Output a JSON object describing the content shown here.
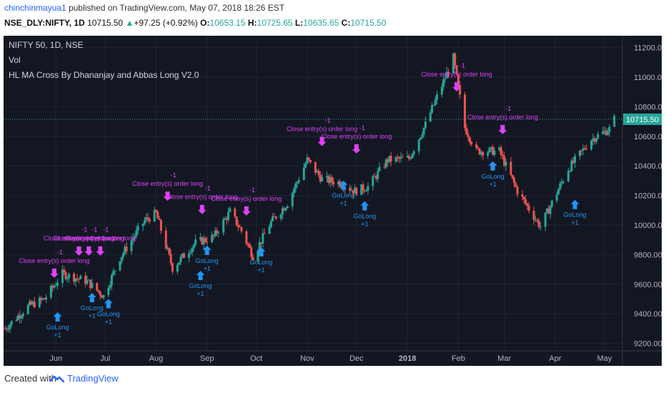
{
  "header": {
    "user": "chinchinmayua1",
    "published": "published on TradingView.com, May 07, 2018 18:26 EST"
  },
  "quote": {
    "symbol": "NSE_DLY:NIFTY, 1D",
    "last": "10715.50",
    "change": "+97.25 (+0.92%)",
    "o_label": "O:",
    "o": "10653.15",
    "h_label": "H:",
    "h": "10725.65",
    "l_label": "L:",
    "l": "10635.65",
    "c_label": "C:",
    "c": "10715.50"
  },
  "legend": {
    "line1": "NIFTY 50, 1D, NSE",
    "line2": "Vol",
    "line3": "HL MA Cross By Dhananjay and Abbas Long V2.0"
  },
  "footer": {
    "created": "Created with",
    "brand": "TradingView"
  },
  "colors": {
    "up": "#26a69a",
    "down": "#ef5350",
    "exit": "#e040fb",
    "entry": "#2196f3",
    "bg": "#131722",
    "price_line": "#26a69a"
  },
  "chart_data": {
    "type": "candlestick",
    "yaxis_ticks": [
      9200,
      9400,
      9600,
      9800,
      10000,
      10200,
      10400,
      10600,
      10800,
      11000,
      11200
    ],
    "ylim": [
      9150,
      11280
    ],
    "current_price": "10715.50",
    "xaxis_labels": [
      "Jun",
      "Jul",
      "Aug",
      "Sep",
      "Oct",
      "Nov",
      "Dec",
      "2018",
      "Feb",
      "Mar",
      "Apr",
      "May"
    ],
    "price_path": [
      [
        "2017-05-01",
        9300
      ],
      [
        "2017-05-15",
        9450
      ],
      [
        "2017-05-25",
        9500
      ],
      [
        "2017-06-05",
        9670
      ],
      [
        "2017-06-20",
        9620
      ],
      [
        "2017-06-30",
        9520
      ],
      [
        "2017-07-10",
        9780
      ],
      [
        "2017-07-25",
        10030
      ],
      [
        "2017-08-01",
        10080
      ],
      [
        "2017-08-11",
        9710
      ],
      [
        "2017-08-25",
        9880
      ],
      [
        "2017-09-05",
        9920
      ],
      [
        "2017-09-15",
        10090
      ],
      [
        "2017-09-22",
        9960
      ],
      [
        "2017-09-29",
        9790
      ],
      [
        "2017-10-10",
        10020
      ],
      [
        "2017-10-20",
        10150
      ],
      [
        "2017-11-01",
        10440
      ],
      [
        "2017-11-10",
        10310
      ],
      [
        "2017-11-20",
        10290
      ],
      [
        "2017-11-30",
        10230
      ],
      [
        "2017-12-08",
        10260
      ],
      [
        "2017-12-20",
        10440
      ],
      [
        "2018-01-02",
        10450
      ],
      [
        "2018-01-12",
        10680
      ],
      [
        "2018-01-29",
        11130
      ],
      [
        "2018-02-05",
        10660
      ],
      [
        "2018-02-12",
        10500
      ],
      [
        "2018-02-26",
        10500
      ],
      [
        "2018-03-09",
        10230
      ],
      [
        "2018-03-23",
        9990
      ],
      [
        "2018-04-09",
        10380
      ],
      [
        "2018-04-23",
        10580
      ],
      [
        "2018-05-04",
        10650
      ],
      [
        "2018-05-07",
        10715
      ]
    ],
    "signals": [
      {
        "type": "exit",
        "label": "Close entry(s) order long",
        "qty": "-1",
        "date": "2017-05-31",
        "price": 9610
      },
      {
        "type": "entry",
        "label": "GoLong",
        "qty": "+1",
        "date": "2017-06-02",
        "price": 9440
      },
      {
        "type": "exit",
        "label": "Close entry(s) order long",
        "qty": "-1",
        "date": "2017-06-15",
        "price": 9760
      },
      {
        "type": "exit",
        "label": "Close entry(s) order long",
        "qty": "-1",
        "date": "2017-06-21",
        "price": 9760
      },
      {
        "type": "entry",
        "label": "GoLong",
        "qty": "+1",
        "date": "2017-06-23",
        "price": 9570
      },
      {
        "type": "exit",
        "label": "Close entry(s) order long",
        "qty": "-1",
        "date": "2017-06-28",
        "price": 9760
      },
      {
        "type": "entry",
        "label": "GoLong",
        "qty": "+1",
        "date": "2017-07-03",
        "price": 9530
      },
      {
        "type": "exit",
        "label": "Close entry(s) order long",
        "qty": "-1",
        "date": "2017-08-08",
        "price": 10130
      },
      {
        "type": "exit",
        "label": "Close entry(s) order long",
        "qty": "-1",
        "date": "2017-08-29",
        "price": 10040
      },
      {
        "type": "entry",
        "label": "GoLong",
        "qty": "+1",
        "date": "2017-08-28",
        "price": 9720
      },
      {
        "type": "entry",
        "label": "GoLong",
        "qty": "+1",
        "date": "2017-09-01",
        "price": 9890
      },
      {
        "type": "exit",
        "label": "Close entry(s) order long",
        "qty": "-1",
        "date": "2017-09-25",
        "price": 10030
      },
      {
        "type": "entry",
        "label": "GoLong",
        "qty": "+1",
        "date": "2017-10-04",
        "price": 9880
      },
      {
        "type": "exit",
        "label": "Close entry(s) order long",
        "qty": "-1",
        "date": "2017-11-10",
        "price": 10500
      },
      {
        "type": "exit",
        "label": "Close entry(s) order long",
        "qty": "-1",
        "date": "2017-12-01",
        "price": 10450
      },
      {
        "type": "entry",
        "label": "GoLong",
        "qty": "+1",
        "date": "2017-11-23",
        "price": 10330
      },
      {
        "type": "entry",
        "label": "GoLong",
        "qty": "+1",
        "date": "2017-12-06",
        "price": 10190
      },
      {
        "type": "exit",
        "label": "Close entry(s) order long",
        "qty": "-1",
        "date": "2018-01-31",
        "price": 10870
      },
      {
        "type": "exit",
        "label": "Close entry(s) order long",
        "qty": "-1",
        "date": "2018-02-28",
        "price": 10580
      },
      {
        "type": "entry",
        "label": "GoLong",
        "qty": "+1",
        "date": "2018-02-22",
        "price": 10460
      },
      {
        "type": "entry",
        "label": "GoLong",
        "qty": "+1",
        "date": "2018-04-13",
        "price": 10200
      }
    ]
  }
}
